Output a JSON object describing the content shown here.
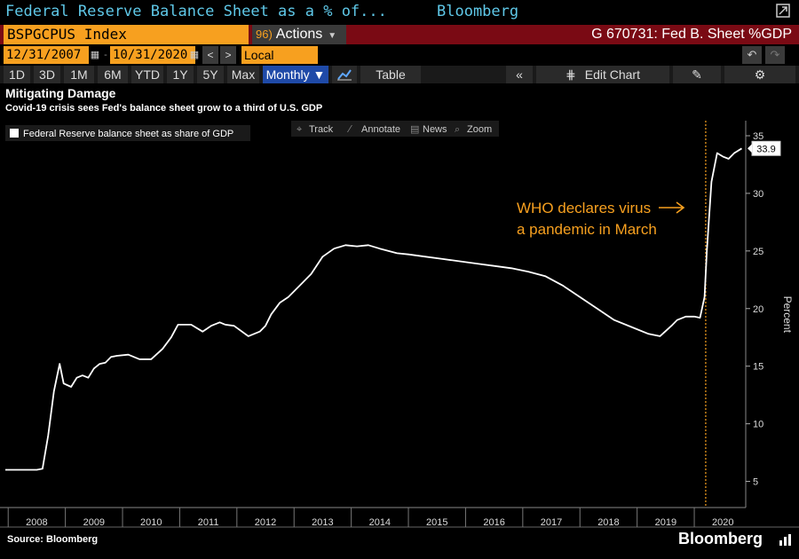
{
  "window": {
    "title": "Federal Reserve Balance Sheet as a % of...",
    "brand": "Bloomberg"
  },
  "command": {
    "ticker": "BSPGCPUS Index",
    "actions_num": "96)",
    "actions_label": "Actions",
    "function": "G 670731: Fed B. Sheet %GDP"
  },
  "dates": {
    "start": "12/31/2007",
    "end": "10/31/2020",
    "currency": "Local CCY"
  },
  "toolbar": {
    "periods": [
      "1D",
      "3D",
      "1M",
      "6M",
      "YTD",
      "1Y",
      "5Y",
      "Max"
    ],
    "frequency": "Monthly ▼",
    "table": "Table",
    "edit_chart": "Edit Chart"
  },
  "chart_tools": [
    "Track",
    "Annotate",
    "News",
    "Zoom"
  ],
  "footer": {
    "source": "Source: Bloomberg",
    "brand": "Bloomberg"
  },
  "colors": {
    "accent": "#f7a01f",
    "title_bar_text": "#5fc8e8",
    "command_bar": "#7a0a14",
    "selected": "#1f4aa8",
    "line": "#ffffff",
    "annotation": "#f7a01f"
  },
  "chart_data": {
    "type": "line",
    "title": "Mitigating Damage",
    "subtitle": "Covid-19 crisis sees Fed's balance sheet grow to a third of U.S. GDP",
    "legend": "Federal Reserve balance sheet as share of GDP",
    "ylabel": "Percent",
    "ylim": [
      3.5,
      36
    ],
    "yticks": [
      5,
      10,
      15,
      20,
      25,
      30,
      35
    ],
    "xlim": [
      2007.95,
      2020.9
    ],
    "xticks": [
      "2008",
      "2009",
      "2010",
      "2011",
      "2012",
      "2013",
      "2014",
      "2015",
      "2016",
      "2017",
      "2018",
      "2019",
      "2020"
    ],
    "last_value": "33.9",
    "annotation": {
      "lines": [
        "WHO declares virus",
        "a pandemic in March"
      ],
      "date": 2020.2
    },
    "grid": false,
    "legend_position": "top-left",
    "series": [
      {
        "name": "Federal Reserve balance sheet as share of GDP",
        "x": [
          2007.95,
          2008.2,
          2008.5,
          2008.6,
          2008.7,
          2008.8,
          2008.9,
          2008.97,
          2009.1,
          2009.2,
          2009.3,
          2009.4,
          2009.5,
          2009.6,
          2009.7,
          2009.8,
          2009.9,
          2010.1,
          2010.3,
          2010.5,
          2010.7,
          2010.85,
          2010.97,
          2011.2,
          2011.4,
          2011.55,
          2011.7,
          2011.8,
          2011.95,
          2012.2,
          2012.4,
          2012.5,
          2012.6,
          2012.75,
          2012.9,
          2013.1,
          2013.3,
          2013.5,
          2013.7,
          2013.9,
          2014.1,
          2014.3,
          2014.5,
          2014.8,
          2015.0,
          2015.3,
          2015.6,
          2015.9,
          2016.2,
          2016.5,
          2016.8,
          2017.1,
          2017.4,
          2017.7,
          2018.0,
          2018.3,
          2018.6,
          2018.9,
          2019.2,
          2019.4,
          2019.6,
          2019.7,
          2019.85,
          2020.0,
          2020.1,
          2020.18,
          2020.22,
          2020.3,
          2020.4,
          2020.5,
          2020.6,
          2020.7,
          2020.83
        ],
        "values": [
          6.0,
          6.0,
          6.0,
          6.1,
          9.0,
          12.8,
          15.2,
          13.5,
          13.2,
          14.0,
          14.2,
          14.0,
          14.8,
          15.2,
          15.3,
          15.8,
          15.9,
          16.0,
          15.6,
          15.6,
          16.5,
          17.5,
          18.6,
          18.6,
          18.0,
          18.5,
          18.8,
          18.6,
          18.5,
          17.6,
          18.0,
          18.5,
          19.5,
          20.5,
          21.0,
          22.0,
          23.0,
          24.5,
          25.2,
          25.5,
          25.4,
          25.5,
          25.2,
          24.8,
          24.7,
          24.5,
          24.3,
          24.1,
          23.9,
          23.7,
          23.5,
          23.2,
          22.8,
          22.0,
          21.0,
          20.0,
          19.0,
          18.4,
          17.8,
          17.6,
          18.5,
          19.0,
          19.3,
          19.3,
          19.2,
          21.0,
          25.0,
          31.0,
          33.5,
          33.2,
          33.0,
          33.5,
          33.9
        ]
      }
    ]
  }
}
